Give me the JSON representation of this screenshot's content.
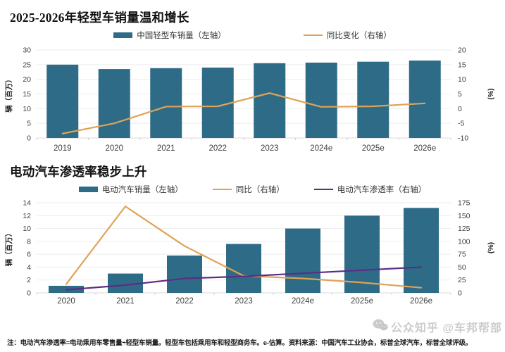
{
  "colors": {
    "bar": "#2e6b87",
    "orange": "#dfa356",
    "purple": "#5b2d86",
    "grid": "#ededed",
    "baseline": "#d9d9d9",
    "axis_text": "#3d3d3d",
    "axis_title": "#222222"
  },
  "chart_data": [
    {
      "type": "bar",
      "title": "2025-2026年轻型车销量温和增长",
      "categories": [
        "2019",
        "2020",
        "2021",
        "2022",
        "2023",
        "2024e",
        "2025e",
        "2026e"
      ],
      "series": [
        {
          "name": "中国轻型车销量（左轴）",
          "kind": "bar",
          "axis": "left",
          "color_key": "bar",
          "values": [
            25.0,
            23.5,
            23.8,
            24.0,
            25.5,
            25.7,
            26.0,
            26.4
          ]
        },
        {
          "name": "同比变化（右轴）",
          "kind": "line",
          "axis": "right",
          "color_key": "orange",
          "values": [
            -8.5,
            -5.0,
            0.7,
            0.8,
            5.3,
            0.6,
            0.8,
            1.8
          ]
        }
      ],
      "left_axis": {
        "label": "辆（百万）",
        "min": 0,
        "max": 30,
        "step": 5
      },
      "right_axis": {
        "label": "(%)",
        "min": -10,
        "max": 20,
        "step": 5
      },
      "grid": true,
      "legend_position": "top",
      "legend_gap": 110
    },
    {
      "type": "bar",
      "title": "电动汽车渗透率稳步上升",
      "categories": [
        "2020",
        "2021",
        "2022",
        "2023",
        "2024e",
        "2025e",
        "2026e"
      ],
      "series": [
        {
          "name": "电动汽车销量（左轴）",
          "kind": "bar",
          "axis": "left",
          "color_key": "bar",
          "values": [
            1.1,
            3.0,
            5.8,
            7.6,
            10.0,
            12.0,
            13.2
          ]
        },
        {
          "name": "同比（右轴）",
          "kind": "line",
          "axis": "right",
          "color_key": "orange",
          "values": [
            17,
            168,
            91,
            33,
            28,
            20,
            10
          ]
        },
        {
          "name": "电动汽车渗透率（右轴）",
          "kind": "line",
          "axis": "right",
          "color_key": "purple",
          "values": [
            6,
            15,
            28,
            32,
            38,
            44,
            50
          ]
        }
      ],
      "left_axis": {
        "label": "辆（百万）",
        "min": 0,
        "max": 14,
        "step": 2
      },
      "right_axis": {
        "label": "(%)",
        "min": 0,
        "max": 175,
        "step": 25
      },
      "grid": true,
      "legend_position": "top",
      "legend_gap": 42
    }
  ],
  "footer": {
    "note": "注：电动汽车渗透率=电动乘用车零售量÷轻型车销量。轻型车包括乘用车和轻型商务车。e-估算。资料来源：中国汽车工业协会，标普全球汽车，标普全球评级。",
    "watermark": "公众知乎 @车邦帮部"
  }
}
